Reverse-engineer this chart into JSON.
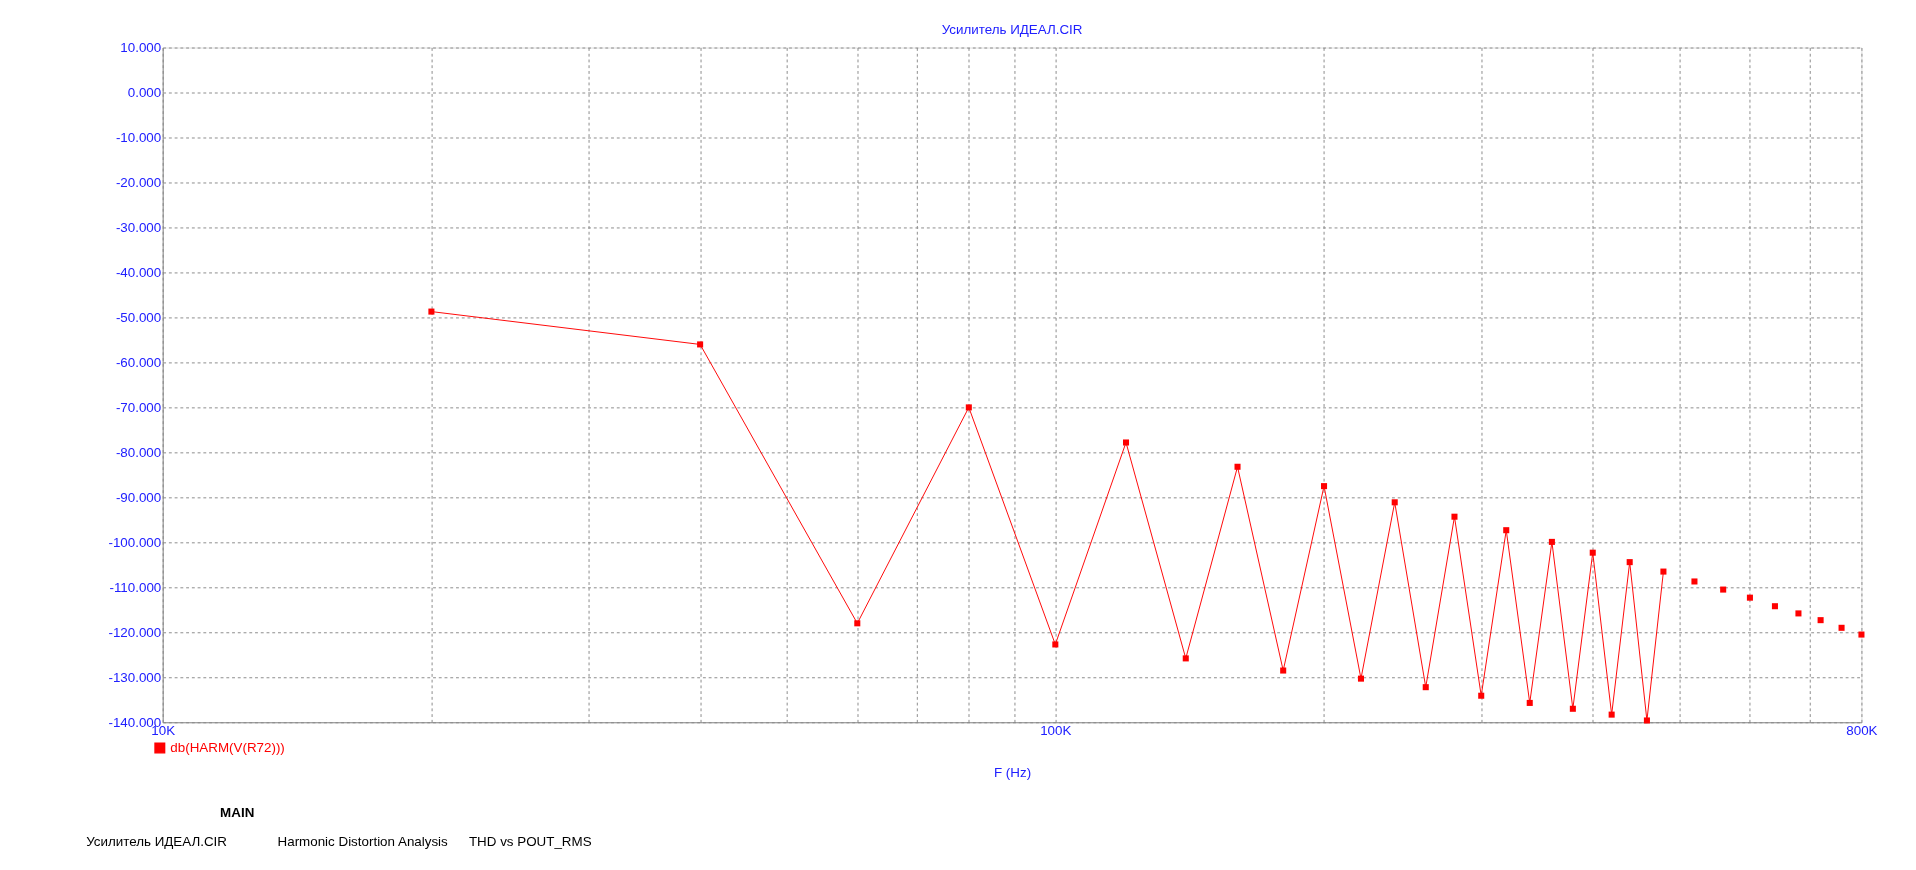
{
  "chart_data": {
    "type": "line",
    "title": "Усилитель ИДЕАЛ.CIR",
    "xlabel": "F (Hz)",
    "x": [
      20000,
      40000,
      60000,
      80000,
      100000,
      120000,
      140000,
      160000,
      180000,
      200000,
      220000,
      240000,
      260000,
      280000,
      300000,
      320000,
      340000,
      360000,
      380000,
      400000,
      420000,
      440000,
      460000,
      480000,
      500000,
      520000,
      540000,
      560000,
      580000,
      600000,
      620000,
      640000,
      660000,
      680000,
      700000,
      720000,
      740000,
      760000,
      780000,
      800000
    ],
    "series": [
      {
        "name": "db(HARM(V(R72)))",
        "color": "#ff0000",
        "values": [
          -48.7,
          -56.0,
          -118.0,
          -70.0,
          -122.7,
          -77.8,
          -125.8,
          -83.2,
          -128.5,
          -87.5,
          -130.3,
          -91.1,
          -132.2,
          -94.3,
          -134.1,
          -97.3,
          -135.7,
          -99.9,
          -137.0,
          -102.3,
          -138.3,
          -104.4,
          -139.6,
          -106.5,
          null,
          -108.7,
          null,
          -110.5,
          null,
          -112.3,
          null,
          -114.2,
          null,
          -115.8,
          null,
          -117.3,
          null,
          -119.0,
          null,
          -120.5
        ]
      }
    ],
    "log": "x",
    "xlim": [
      10000,
      800000
    ],
    "xticks": [
      {
        "value": 10000,
        "label": "10K"
      },
      {
        "value": 20000,
        "label": null
      },
      {
        "value": 30000,
        "label": null
      },
      {
        "value": 40000,
        "label": null
      },
      {
        "value": 50000,
        "label": null
      },
      {
        "value": 60000,
        "label": null
      },
      {
        "value": 70000,
        "label": null
      },
      {
        "value": 80000,
        "label": null
      },
      {
        "value": 90000,
        "label": null
      },
      {
        "value": 100000,
        "label": "100K"
      },
      {
        "value": 200000,
        "label": null
      },
      {
        "value": 300000,
        "label": null
      },
      {
        "value": 400000,
        "label": null
      },
      {
        "value": 500000,
        "label": null
      },
      {
        "value": 600000,
        "label": null
      },
      {
        "value": 700000,
        "label": null
      },
      {
        "value": 800000,
        "label": "800K"
      }
    ],
    "ylim": [
      -140,
      10
    ],
    "yticks": [
      {
        "value": 10,
        "label": "10.000"
      },
      {
        "value": 0,
        "label": "0.000"
      },
      {
        "value": -10,
        "label": "-10.000"
      },
      {
        "value": -20,
        "label": "-20.000"
      },
      {
        "value": -30,
        "label": "-30.000"
      },
      {
        "value": -40,
        "label": "-40.000"
      },
      {
        "value": -50,
        "label": "-50.000"
      },
      {
        "value": -60,
        "label": "-60.000"
      },
      {
        "value": -70,
        "label": "-70.000"
      },
      {
        "value": -80,
        "label": "-80.000"
      },
      {
        "value": -90,
        "label": "-90.000"
      },
      {
        "value": -100,
        "label": "-100.000"
      },
      {
        "value": -110,
        "label": "-110.000"
      },
      {
        "value": -120,
        "label": "-120.000"
      },
      {
        "value": -130,
        "label": "-130.000"
      },
      {
        "value": -140,
        "label": "-140.000"
      }
    ],
    "grid": true,
    "legend": "bottom left",
    "marker": "square",
    "line_style": "solid",
    "annotations": [
      "MAIN",
      "Усилитель ИДЕАЛ.CIR",
      "Harmonic Distortion Analysis",
      "THD vs POUT_RMS"
    ]
  }
}
